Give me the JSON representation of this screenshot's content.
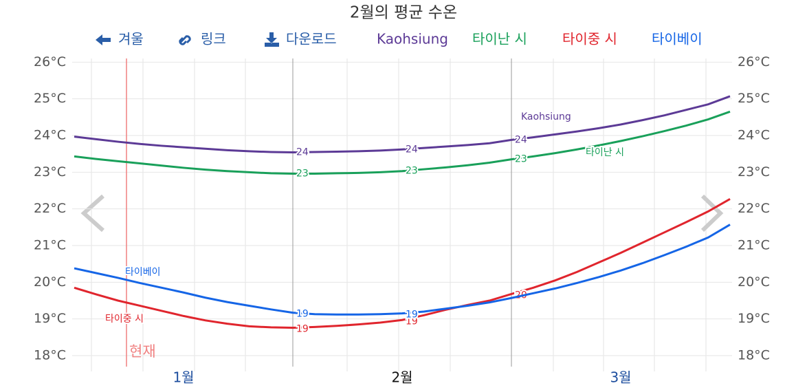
{
  "chart_data": {
    "type": "line",
    "title": "2월의 평균 수온",
    "toolbar": [
      "겨울",
      "링크",
      "다운로드"
    ],
    "now_label": "현재",
    "categories": [
      null,
      null,
      null,
      null,
      null,
      "1월",
      null,
      null,
      null,
      null,
      null,
      null,
      null,
      null,
      null,
      "2월",
      null,
      null,
      null,
      null,
      null,
      null,
      null,
      null,
      null,
      "3월",
      null,
      null,
      null,
      null,
      null
    ],
    "series": [
      {
        "name": "Kaohsiung",
        "color": "#5c3a96",
        "values": [
          23.97,
          23.9,
          23.83,
          23.77,
          23.72,
          23.68,
          23.64,
          23.6,
          23.57,
          23.55,
          23.54,
          23.55,
          23.56,
          23.57,
          23.59,
          23.62,
          23.66,
          23.7,
          23.74,
          23.79,
          23.88,
          23.95,
          24.03,
          24.11,
          24.2,
          24.3,
          24.42,
          24.55,
          24.7,
          24.85,
          25.07
        ],
        "value_labels": [
          null,
          null,
          null,
          null,
          null,
          null,
          null,
          null,
          null,
          null,
          "24",
          null,
          null,
          null,
          null,
          "24",
          null,
          null,
          null,
          null,
          "24",
          null,
          null,
          null,
          null,
          null,
          null,
          null,
          null,
          null,
          null
        ]
      },
      {
        "name": "타이난 시",
        "color": "#19a05a",
        "values": [
          23.43,
          23.36,
          23.3,
          23.24,
          23.18,
          23.12,
          23.07,
          23.03,
          23.0,
          22.97,
          22.96,
          22.96,
          22.97,
          22.98,
          23.0,
          23.03,
          23.08,
          23.13,
          23.19,
          23.26,
          23.35,
          23.43,
          23.52,
          23.62,
          23.73,
          23.85,
          23.98,
          24.12,
          24.27,
          24.44,
          24.65
        ],
        "value_labels": [
          null,
          null,
          null,
          null,
          null,
          null,
          null,
          null,
          null,
          null,
          "23",
          null,
          null,
          null,
          null,
          "23",
          null,
          null,
          null,
          null,
          "23",
          null,
          null,
          null,
          null,
          null,
          null,
          null,
          null,
          null,
          null
        ]
      },
      {
        "name": "타이중 시",
        "color": "#e0252d",
        "values": [
          19.85,
          19.67,
          19.5,
          19.36,
          19.22,
          19.08,
          18.96,
          18.87,
          18.8,
          18.77,
          18.76,
          18.78,
          18.81,
          18.85,
          18.9,
          18.97,
          19.1,
          19.25,
          19.38,
          19.5,
          19.68,
          19.85,
          20.05,
          20.28,
          20.54,
          20.8,
          21.08,
          21.36,
          21.64,
          21.93,
          22.27
        ],
        "value_labels": [
          null,
          null,
          null,
          null,
          null,
          null,
          null,
          null,
          null,
          null,
          "19",
          null,
          null,
          null,
          null,
          "19",
          null,
          null,
          null,
          null,
          "20",
          null,
          null,
          null,
          null,
          null,
          null,
          null,
          null,
          null,
          null
        ]
      },
      {
        "name": "타이베이",
        "color": "#1565e6",
        "values": [
          20.38,
          20.25,
          20.12,
          19.98,
          19.85,
          19.72,
          19.58,
          19.46,
          19.36,
          19.26,
          19.17,
          19.13,
          19.12,
          19.12,
          19.13,
          19.15,
          19.2,
          19.28,
          19.36,
          19.45,
          19.57,
          19.7,
          19.83,
          19.98,
          20.14,
          20.32,
          20.52,
          20.74,
          20.97,
          21.22,
          21.57
        ],
        "value_labels": [
          null,
          null,
          null,
          null,
          null,
          null,
          null,
          null,
          null,
          null,
          "19",
          null,
          null,
          null,
          null,
          "19",
          null,
          null,
          null,
          null,
          null,
          null,
          null,
          null,
          null,
          null,
          null,
          null,
          null,
          null,
          null
        ]
      }
    ],
    "ylim": [
      17.7,
      26.1
    ],
    "yticks": [
      {
        "value": 18,
        "label": "18°C"
      },
      {
        "value": 19,
        "label": "19°C"
      },
      {
        "value": 20,
        "label": "20°C"
      },
      {
        "value": 21,
        "label": "21°C"
      },
      {
        "value": 22,
        "label": "22°C"
      },
      {
        "value": 23,
        "label": "23°C"
      },
      {
        "value": 24,
        "label": "24°C"
      },
      {
        "value": 25,
        "label": "25°C"
      },
      {
        "value": 26,
        "label": "26°C"
      }
    ],
    "grid": true
  }
}
